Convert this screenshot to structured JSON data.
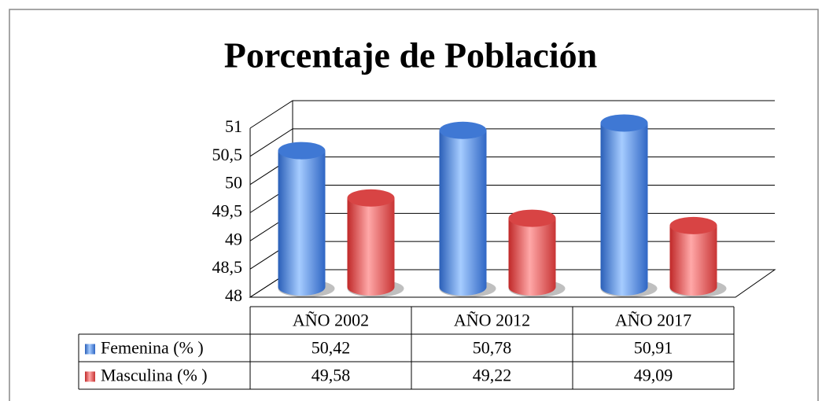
{
  "chart_data": {
    "type": "bar3d",
    "title": "Porcentaje de Población",
    "categories": [
      "AÑO 2002",
      "AÑO 2012",
      "AÑO 2017"
    ],
    "series": [
      {
        "name": "Femenina (% )",
        "color": "#4a86e0",
        "values": [
          50.42,
          50.78,
          50.91
        ],
        "value_labels": [
          "50,42",
          "50,78",
          "50,91"
        ]
      },
      {
        "name": "Masculina (% )",
        "color": "#e05050",
        "values": [
          49.58,
          49.22,
          49.09
        ],
        "value_labels": [
          "49,58",
          "49,22",
          "49,09"
        ]
      }
    ],
    "ylim": [
      48,
      51
    ],
    "yticks": [
      48,
      {
        "value": 48.5,
        "label": "48,5"
      },
      49,
      {
        "value": 49.5,
        "label": "49,5"
      },
      50,
      {
        "value": 50.5,
        "label": "50,5"
      },
      51
    ],
    "grid": true
  }
}
